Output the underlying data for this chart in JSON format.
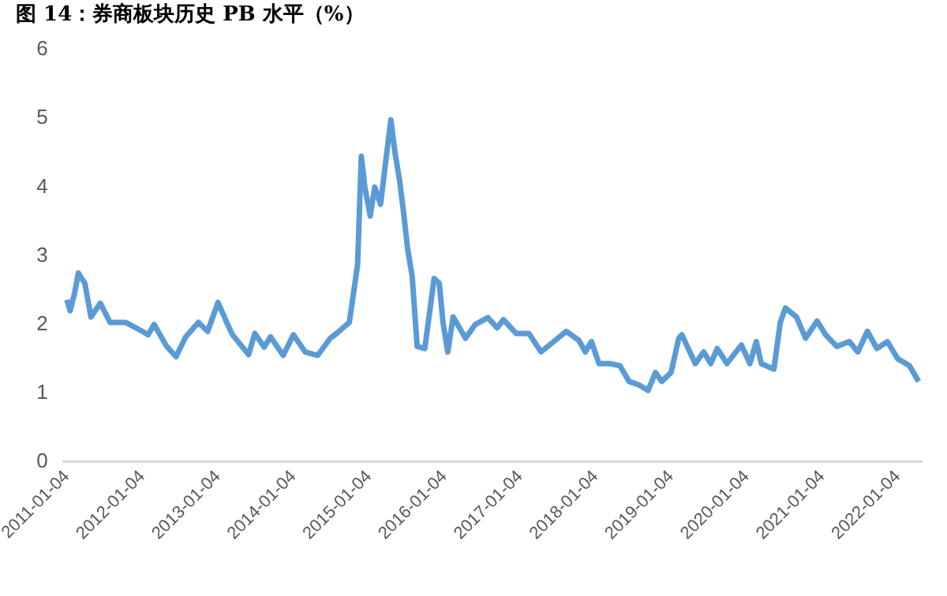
{
  "chart_data": {
    "type": "line",
    "title": "图 14：券商板块历史 PB 水平（%）",
    "x": [
      "2011-01-04",
      "2011-01-20",
      "2011-02-10",
      "2011-03-01",
      "2011-04-01",
      "2011-05-01",
      "2011-06-15",
      "2011-08-01",
      "2011-10-15",
      "2012-01-04",
      "2012-02-01",
      "2012-03-01",
      "2012-05-01",
      "2012-06-15",
      "2012-08-01",
      "2012-10-01",
      "2012-11-15",
      "2013-01-04",
      "2013-02-15",
      "2013-03-15",
      "2013-06-01",
      "2013-07-01",
      "2013-08-15",
      "2013-09-15",
      "2013-11-15",
      "2014-01-04",
      "2014-03-01",
      "2014-05-01",
      "2014-07-01",
      "2014-08-01",
      "2014-10-01",
      "2014-11-10",
      "2014-11-28",
      "2014-12-15",
      "2015-01-10",
      "2015-02-01",
      "2015-03-01",
      "2015-03-25",
      "2015-04-20",
      "2015-05-10",
      "2015-06-01",
      "2015-06-20",
      "2015-07-10",
      "2015-08-01",
      "2015-08-25",
      "2015-10-01",
      "2015-11-15",
      "2015-12-10",
      "2015-12-28",
      "2016-01-20",
      "2016-02-15",
      "2016-04-15",
      "2016-06-01",
      "2016-08-01",
      "2016-09-15",
      "2016-10-15",
      "2016-12-15",
      "2017-02-15",
      "2017-04-15",
      "2017-06-15",
      "2017-08-15",
      "2017-10-15",
      "2017-11-15",
      "2017-12-15",
      "2018-01-20",
      "2018-03-15",
      "2018-05-01",
      "2018-06-15",
      "2018-08-01",
      "2018-09-15",
      "2018-10-20",
      "2018-11-20",
      "2019-01-04",
      "2019-02-10",
      "2019-02-25",
      "2019-05-01",
      "2019-06-10",
      "2019-07-15",
      "2019-08-15",
      "2019-10-01",
      "2019-12-10",
      "2020-01-20",
      "2020-02-20",
      "2020-03-15",
      "2020-05-15",
      "2020-06-15",
      "2020-07-10",
      "2020-09-01",
      "2020-10-15",
      "2020-12-10",
      "2021-01-20",
      "2021-03-15",
      "2021-05-15",
      "2021-06-25",
      "2021-08-10",
      "2021-09-25",
      "2021-11-15",
      "2022-01-04",
      "2022-03-01",
      "2022-04-15"
    ],
    "values": [
      2.36,
      2.2,
      2.45,
      2.75,
      2.6,
      2.11,
      2.31,
      2.03,
      2.03,
      1.9,
      1.85,
      2.0,
      1.68,
      1.53,
      1.82,
      2.03,
      1.9,
      2.32,
      2.03,
      1.85,
      1.56,
      1.87,
      1.67,
      1.82,
      1.55,
      1.85,
      1.6,
      1.55,
      1.8,
      1.87,
      2.03,
      2.87,
      4.45,
      4.0,
      3.58,
      4.0,
      3.75,
      4.35,
      4.98,
      4.5,
      4.1,
      3.64,
      3.1,
      2.7,
      1.68,
      1.65,
      2.67,
      2.6,
      2.03,
      1.6,
      2.11,
      1.8,
      2.0,
      2.1,
      1.95,
      2.07,
      1.87,
      1.87,
      1.6,
      1.75,
      1.9,
      1.77,
      1.6,
      1.75,
      1.43,
      1.43,
      1.4,
      1.17,
      1.12,
      1.04,
      1.3,
      1.17,
      1.3,
      1.8,
      1.85,
      1.43,
      1.6,
      1.43,
      1.65,
      1.43,
      1.7,
      1.43,
      1.75,
      1.43,
      1.35,
      2.03,
      2.24,
      2.11,
      1.8,
      2.05,
      1.85,
      1.68,
      1.75,
      1.6,
      1.9,
      1.65,
      1.75,
      1.5,
      1.4,
      1.17
    ],
    "color": "#5b9bd5",
    "marker": "none",
    "line_style": "solid",
    "grid": false,
    "legend": false,
    "xlim": [
      "2010-12-20",
      "2022-04-30"
    ],
    "xticks": [
      "2011-01-04",
      "2012-01-04",
      "2013-01-04",
      "2014-01-04",
      "2015-01-04",
      "2016-01-04",
      "2017-01-04",
      "2018-01-04",
      "2019-01-04",
      "2020-01-04",
      "2021-01-04",
      "2022-01-04"
    ],
    "ylim": [
      0,
      6
    ],
    "yticks": [
      0,
      1,
      2,
      3,
      4,
      5,
      6
    ]
  }
}
